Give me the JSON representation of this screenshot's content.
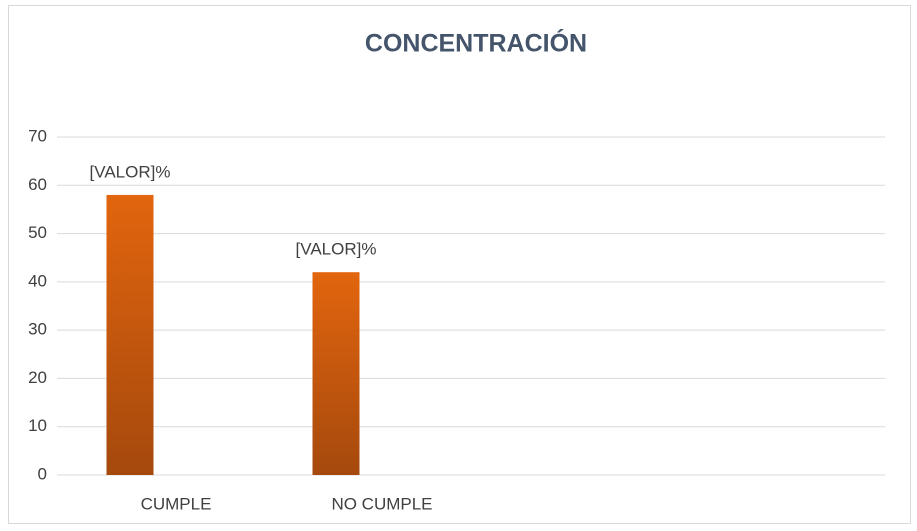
{
  "chart_data": {
    "type": "bar",
    "title": "CONCENTRACIÓN",
    "categories": [
      "CUMPLE",
      "NO CUMPLE",
      null,
      null
    ],
    "values": [
      58,
      42,
      null,
      null
    ],
    "value_labels": [
      "[VALOR]%",
      "[VALOR]%",
      null,
      null
    ],
    "color": "#d65f0e",
    "ylim": [
      0,
      70
    ],
    "yticks": [
      0,
      10,
      20,
      30,
      40,
      50,
      60,
      70
    ],
    "grid": true
  }
}
